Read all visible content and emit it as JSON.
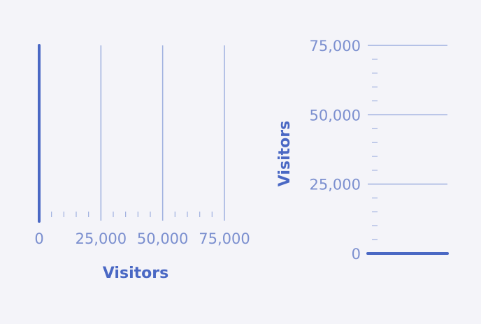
{
  "colors": {
    "background": "#f4f4f9",
    "axis_line": "#4a68c4",
    "grid_line": "#9fb0df",
    "minor_tick": "#9fb0df",
    "tick_label": "#7b8fcf",
    "axis_title": "#4a68c4"
  },
  "chart_data": [
    {
      "type": "bar",
      "orientation": "horizontal",
      "title": "",
      "xlabel": "Visitors",
      "ylabel": "",
      "xlim": [
        0,
        75000
      ],
      "major_ticks": [
        0,
        25000,
        50000,
        75000
      ],
      "tick_labels": [
        "0",
        "25,000",
        "50,000",
        "75,000"
      ],
      "minor_ticks_per_interval": 4,
      "grid": true,
      "categories": [],
      "values": []
    },
    {
      "type": "bar",
      "orientation": "vertical",
      "title": "",
      "xlabel": "",
      "ylabel": "Visitors",
      "ylim": [
        0,
        75000
      ],
      "major_ticks": [
        0,
        25000,
        50000,
        75000
      ],
      "tick_labels": [
        "0",
        "25,000",
        "50,000",
        "75,000"
      ],
      "minor_ticks_per_interval": 4,
      "grid": true,
      "categories": [],
      "values": []
    }
  ]
}
